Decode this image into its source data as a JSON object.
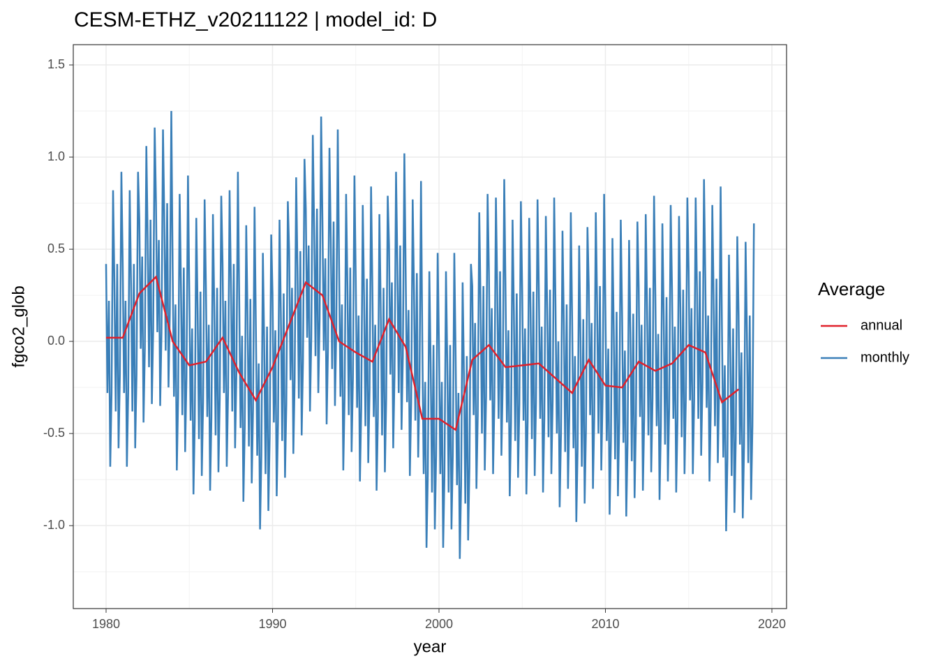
{
  "chart_data": {
    "type": "line",
    "title": "CESM-ETHZ_v20211122 | model_id: D",
    "xlabel": "year",
    "ylabel": "fgco2_glob",
    "legend_title": "Average",
    "legend": "right",
    "grid": true,
    "xlim": [
      1978.03,
      2020.88
    ],
    "xticks": [
      1980,
      1990,
      2000,
      2010,
      2020
    ],
    "ylim": [
      -1.45,
      1.61
    ],
    "yticks": [
      {
        "value": -1.0,
        "label": "-1.0"
      },
      {
        "value": -0.5,
        "label": "-0.5"
      },
      {
        "value": 0.0,
        "label": "0.0"
      },
      {
        "value": 0.5,
        "label": "0.5"
      },
      {
        "value": 1.0,
        "label": "1.0"
      },
      {
        "value": 1.5,
        "label": "1.5"
      }
    ],
    "series": [
      {
        "name": "annual",
        "color": "#e0202a",
        "x": [
          1980,
          1981,
          1982,
          1983,
          1984,
          1985,
          1986,
          1987,
          1988,
          1989,
          1990,
          1991,
          1992,
          1993,
          1994,
          1995,
          1996,
          1997,
          1998,
          1999,
          2000,
          2001,
          2002,
          2003,
          2004,
          2005,
          2006,
          2007,
          2008,
          2009,
          2010,
          2011,
          2012,
          2013,
          2014,
          2015,
          2016,
          2017,
          2018
        ],
        "values": [
          0.02,
          0.02,
          0.26,
          0.35,
          0.0,
          -0.13,
          -0.11,
          0.02,
          -0.17,
          -0.32,
          -0.14,
          0.09,
          0.32,
          0.25,
          0.0,
          -0.06,
          -0.11,
          0.12,
          -0.03,
          -0.42,
          -0.42,
          -0.48,
          -0.1,
          -0.02,
          -0.14,
          -0.13,
          -0.12,
          -0.2,
          -0.28,
          -0.1,
          -0.24,
          -0.25,
          -0.11,
          -0.16,
          -0.12,
          -0.02,
          -0.06,
          -0.33,
          -0.26
        ]
      },
      {
        "name": "monthly",
        "color": "#3a7fb8",
        "x": [
          1980.0,
          1980.08,
          1980.17,
          1980.25,
          1980.33,
          1980.42,
          1980.5,
          1980.58,
          1980.67,
          1980.75,
          1980.83,
          1980.92,
          1981.0,
          1981.08,
          1981.17,
          1981.25,
          1981.33,
          1981.42,
          1981.5,
          1981.58,
          1981.67,
          1981.75,
          1981.83,
          1981.92,
          1982.0,
          1982.08,
          1982.17,
          1982.25,
          1982.33,
          1982.42,
          1982.5,
          1982.58,
          1982.67,
          1982.75,
          1982.83,
          1982.92,
          1983.0,
          1983.08,
          1983.17,
          1983.25,
          1983.33,
          1983.42,
          1983.5,
          1983.58,
          1983.67,
          1983.75,
          1983.83,
          1983.92,
          1984.0,
          1984.08,
          1984.17,
          1984.25,
          1984.33,
          1984.42,
          1984.5,
          1984.58,
          1984.67,
          1984.75,
          1984.83,
          1984.92,
          1985.0,
          1985.08,
          1985.17,
          1985.25,
          1985.33,
          1985.42,
          1985.5,
          1985.58,
          1985.67,
          1985.75,
          1985.83,
          1985.92,
          1986.0,
          1986.08,
          1986.17,
          1986.25,
          1986.33,
          1986.42,
          1986.5,
          1986.58,
          1986.67,
          1986.75,
          1986.83,
          1986.92,
          1987.0,
          1987.08,
          1987.17,
          1987.25,
          1987.33,
          1987.42,
          1987.5,
          1987.58,
          1987.67,
          1987.75,
          1987.83,
          1987.92,
          1988.0,
          1988.08,
          1988.17,
          1988.25,
          1988.33,
          1988.42,
          1988.5,
          1988.58,
          1988.67,
          1988.75,
          1988.83,
          1988.92,
          1989.0,
          1989.08,
          1989.17,
          1989.25,
          1989.33,
          1989.42,
          1989.5,
          1989.58,
          1989.67,
          1989.75,
          1989.83,
          1989.92,
          1990.0,
          1990.08,
          1990.17,
          1990.25,
          1990.33,
          1990.42,
          1990.5,
          1990.58,
          1990.67,
          1990.75,
          1990.83,
          1990.92,
          1991.0,
          1991.08,
          1991.17,
          1991.25,
          1991.33,
          1991.42,
          1991.5,
          1991.58,
          1991.67,
          1991.75,
          1991.83,
          1991.92,
          1992.0,
          1992.08,
          1992.17,
          1992.25,
          1992.33,
          1992.42,
          1992.5,
          1992.58,
          1992.67,
          1992.75,
          1992.83,
          1992.92,
          1993.0,
          1993.08,
          1993.17,
          1993.25,
          1993.33,
          1993.42,
          1993.5,
          1993.58,
          1993.67,
          1993.75,
          1993.83,
          1993.92,
          1994.0,
          1994.08,
          1994.17,
          1994.25,
          1994.33,
          1994.42,
          1994.5,
          1994.58,
          1994.67,
          1994.75,
          1994.83,
          1994.92,
          1995.0,
          1995.08,
          1995.17,
          1995.25,
          1995.33,
          1995.42,
          1995.5,
          1995.58,
          1995.67,
          1995.75,
          1995.83,
          1995.92,
          1996.0,
          1996.08,
          1996.17,
          1996.25,
          1996.33,
          1996.42,
          1996.5,
          1996.58,
          1996.67,
          1996.75,
          1996.83,
          1996.92,
          1997.0,
          1997.08,
          1997.17,
          1997.25,
          1997.33,
          1997.42,
          1997.5,
          1997.58,
          1997.67,
          1997.75,
          1997.83,
          1997.92,
          1998.0,
          1998.08,
          1998.17,
          1998.25,
          1998.33,
          1998.42,
          1998.5,
          1998.58,
          1998.67,
          1998.75,
          1998.83,
          1998.92,
          1999.0,
          1999.08,
          1999.17,
          1999.25,
          1999.33,
          1999.42,
          1999.5,
          1999.58,
          1999.67,
          1999.75,
          1999.83,
          1999.92,
          2000.0,
          2000.08,
          2000.17,
          2000.25,
          2000.33,
          2000.42,
          2000.5,
          2000.58,
          2000.67,
          2000.75,
          2000.83,
          2000.92,
          2001.0,
          2001.08,
          2001.17,
          2001.25,
          2001.33,
          2001.42,
          2001.5,
          2001.58,
          2001.67,
          2001.75,
          2001.83,
          2001.92,
          2002.0,
          2002.08,
          2002.17,
          2002.25,
          2002.33,
          2002.42,
          2002.5,
          2002.58,
          2002.67,
          2002.75,
          2002.83,
          2002.92,
          2003.0,
          2003.08,
          2003.17,
          2003.25,
          2003.33,
          2003.42,
          2003.5,
          2003.58,
          2003.67,
          2003.75,
          2003.83,
          2003.92,
          2004.0,
          2004.08,
          2004.17,
          2004.25,
          2004.33,
          2004.42,
          2004.5,
          2004.58,
          2004.67,
          2004.75,
          2004.83,
          2004.92,
          2005.0,
          2005.08,
          2005.17,
          2005.25,
          2005.33,
          2005.42,
          2005.5,
          2005.58,
          2005.67,
          2005.75,
          2005.83,
          2005.92,
          2006.0,
          2006.08,
          2006.17,
          2006.25,
          2006.33,
          2006.42,
          2006.5,
          2006.58,
          2006.67,
          2006.75,
          2006.83,
          2006.92,
          2007.0,
          2007.08,
          2007.17,
          2007.25,
          2007.33,
          2007.42,
          2007.5,
          2007.58,
          2007.67,
          2007.75,
          2007.83,
          2007.92,
          2008.0,
          2008.08,
          2008.17,
          2008.25,
          2008.33,
          2008.42,
          2008.5,
          2008.58,
          2008.67,
          2008.75,
          2008.83,
          2008.92,
          2009.0,
          2009.08,
          2009.17,
          2009.25,
          2009.33,
          2009.42,
          2009.5,
          2009.58,
          2009.67,
          2009.75,
          2009.83,
          2009.92,
          2010.0,
          2010.08,
          2010.17,
          2010.25,
          2010.33,
          2010.42,
          2010.5,
          2010.58,
          2010.67,
          2010.75,
          2010.83,
          2010.92,
          2011.0,
          2011.08,
          2011.17,
          2011.25,
          2011.33,
          2011.42,
          2011.5,
          2011.58,
          2011.67,
          2011.75,
          2011.83,
          2011.92,
          2012.0,
          2012.08,
          2012.17,
          2012.25,
          2012.33,
          2012.42,
          2012.5,
          2012.58,
          2012.67,
          2012.75,
          2012.83,
          2012.92,
          2013.0,
          2013.08,
          2013.17,
          2013.25,
          2013.33,
          2013.42,
          2013.5,
          2013.58,
          2013.67,
          2013.75,
          2013.83,
          2013.92,
          2014.0,
          2014.08,
          2014.17,
          2014.25,
          2014.33,
          2014.42,
          2014.5,
          2014.58,
          2014.67,
          2014.75,
          2014.83,
          2014.92,
          2015.0,
          2015.08,
          2015.17,
          2015.25,
          2015.33,
          2015.42,
          2015.5,
          2015.58,
          2015.67,
          2015.75,
          2015.83,
          2015.92,
          2016.0,
          2016.08,
          2016.17,
          2016.25,
          2016.33,
          2016.42,
          2016.5,
          2016.58,
          2016.67,
          2016.75,
          2016.83,
          2016.92,
          2017.0,
          2017.08,
          2017.17,
          2017.25,
          2017.33,
          2017.42,
          2017.5,
          2017.58,
          2017.67,
          2017.75,
          2017.83,
          2017.92,
          2018.0,
          2018.08,
          2018.17,
          2018.25,
          2018.33,
          2018.42,
          2018.5,
          2018.58,
          2018.67,
          2018.75,
          2018.83,
          2018.92
        ],
        "values": [
          0.42,
          -0.28,
          0.22,
          -0.68,
          -0.28,
          0.82,
          0.32,
          -0.38,
          0.42,
          -0.58,
          -0.18,
          0.92,
          0.42,
          -0.28,
          0.22,
          -0.68,
          -0.28,
          0.82,
          0.32,
          -0.38,
          0.42,
          -0.58,
          -0.18,
          0.92,
          0.66,
          -0.04,
          0.46,
          -0.44,
          -0.04,
          1.06,
          0.56,
          -0.14,
          0.66,
          -0.34,
          0.06,
          1.16,
          0.75,
          0.05,
          0.55,
          -0.35,
          0.05,
          1.15,
          0.65,
          -0.05,
          0.75,
          -0.25,
          0.15,
          1.25,
          0.4,
          -0.3,
          0.2,
          -0.7,
          -0.3,
          0.8,
          0.3,
          -0.4,
          0.4,
          -0.6,
          -0.2,
          0.9,
          0.27,
          -0.43,
          0.07,
          -0.83,
          -0.43,
          0.67,
          0.17,
          -0.53,
          0.27,
          -0.73,
          -0.33,
          0.77,
          0.29,
          -0.41,
          0.09,
          -0.81,
          -0.41,
          0.69,
          0.19,
          -0.51,
          0.29,
          -0.71,
          -0.31,
          0.79,
          0.42,
          -0.28,
          0.22,
          -0.68,
          -0.28,
          0.82,
          0.32,
          -0.38,
          0.42,
          -0.58,
          -0.18,
          0.92,
          0.23,
          -0.47,
          0.03,
          -0.87,
          -0.47,
          0.63,
          0.13,
          -0.57,
          0.23,
          -0.77,
          -0.37,
          0.73,
          0.08,
          -0.62,
          -0.12,
          -1.02,
          -0.62,
          0.48,
          -0.02,
          -0.72,
          0.08,
          -0.92,
          -0.52,
          0.58,
          0.26,
          -0.44,
          0.06,
          -0.84,
          -0.44,
          0.66,
          0.16,
          -0.54,
          0.26,
          -0.74,
          -0.34,
          0.76,
          0.49,
          -0.21,
          0.29,
          -0.61,
          -0.21,
          0.89,
          0.39,
          -0.31,
          0.49,
          -0.51,
          -0.11,
          0.99,
          0.72,
          0.02,
          0.52,
          -0.38,
          0.02,
          1.12,
          0.62,
          -0.08,
          0.72,
          -0.28,
          0.12,
          1.22,
          0.65,
          -0.05,
          0.45,
          -0.45,
          -0.05,
          1.05,
          0.55,
          -0.15,
          0.65,
          -0.35,
          0.05,
          1.15,
          0.4,
          -0.3,
          0.2,
          -0.7,
          -0.3,
          0.8,
          0.3,
          -0.4,
          0.4,
          -0.6,
          -0.2,
          0.9,
          0.34,
          -0.36,
          0.14,
          -0.76,
          -0.36,
          0.74,
          0.24,
          -0.46,
          0.34,
          -0.66,
          -0.26,
          0.84,
          0.29,
          -0.41,
          0.09,
          -0.81,
          -0.41,
          0.69,
          0.19,
          -0.51,
          0.29,
          -0.71,
          -0.31,
          0.79,
          0.52,
          -0.18,
          0.32,
          -0.58,
          -0.18,
          0.92,
          0.42,
          -0.28,
          0.52,
          -0.48,
          -0.08,
          1.02,
          0.37,
          -0.33,
          0.17,
          -0.73,
          -0.33,
          0.77,
          0.27,
          -0.43,
          0.37,
          -0.63,
          -0.23,
          0.87,
          -0.02,
          -0.72,
          -0.22,
          -1.12,
          -0.72,
          0.38,
          -0.12,
          -0.82,
          -0.02,
          -1.02,
          -0.62,
          0.48,
          -0.02,
          -0.72,
          -0.22,
          -1.12,
          -0.72,
          0.38,
          -0.12,
          -0.82,
          -0.02,
          -1.02,
          -0.62,
          0.48,
          -0.08,
          -0.78,
          -0.28,
          -1.18,
          -0.78,
          0.32,
          -0.18,
          -0.88,
          -0.08,
          -1.08,
          -0.68,
          0.42,
          0.3,
          -0.4,
          0.1,
          -0.8,
          -0.4,
          0.7,
          0.2,
          -0.5,
          0.3,
          -0.7,
          -0.3,
          0.8,
          0.38,
          -0.32,
          0.18,
          -0.72,
          -0.32,
          0.78,
          0.28,
          -0.42,
          0.38,
          -0.62,
          -0.22,
          0.88,
          0.26,
          -0.44,
          0.06,
          -0.84,
          -0.44,
          0.66,
          0.16,
          -0.54,
          0.26,
          -0.74,
          -0.34,
          0.76,
          0.27,
          -0.43,
          0.07,
          -0.83,
          -0.43,
          0.67,
          0.17,
          -0.53,
          0.27,
          -0.73,
          -0.33,
          0.77,
          0.28,
          -0.42,
          0.08,
          -0.82,
          -0.42,
          0.68,
          0.18,
          -0.52,
          0.28,
          -0.72,
          -0.32,
          0.78,
          0.2,
          -0.5,
          0,
          -0.9,
          -0.5,
          0.6,
          0.1,
          -0.6,
          0.2,
          -0.8,
          -0.4,
          0.7,
          0.12,
          -0.58,
          -0.08,
          -0.98,
          -0.58,
          0.52,
          0.02,
          -0.68,
          0.12,
          -0.88,
          -0.48,
          0.62,
          0.3,
          -0.4,
          0.1,
          -0.8,
          -0.4,
          0.7,
          0.2,
          -0.5,
          0.3,
          -0.7,
          -0.3,
          0.8,
          0.16,
          -0.54,
          -0.04,
          -0.94,
          -0.54,
          0.56,
          0.06,
          -0.64,
          0.16,
          -0.84,
          -0.44,
          0.66,
          0.15,
          -0.55,
          -0.05,
          -0.95,
          -0.55,
          0.55,
          0.05,
          -0.65,
          0.15,
          -0.85,
          -0.45,
          0.65,
          0.29,
          -0.41,
          0.09,
          -0.81,
          -0.41,
          0.69,
          0.19,
          -0.51,
          0.29,
          -0.71,
          -0.31,
          0.79,
          0.24,
          -0.46,
          0.04,
          -0.86,
          -0.46,
          0.64,
          0.14,
          -0.56,
          0.24,
          -0.76,
          -0.36,
          0.74,
          0.28,
          -0.42,
          0.08,
          -0.82,
          -0.42,
          0.68,
          0.18,
          -0.52,
          0.28,
          -0.72,
          -0.32,
          0.78,
          0.38,
          -0.32,
          0.18,
          -0.72,
          -0.32,
          0.78,
          0.28,
          -0.42,
          0.38,
          -0.62,
          -0.22,
          0.88,
          0.34,
          -0.36,
          0.14,
          -0.76,
          -0.36,
          0.74,
          0.24,
          -0.46,
          0.34,
          -0.66,
          -0.26,
          0.84,
          0.07,
          -0.63,
          -0.13,
          -1.03,
          -0.63,
          0.47,
          -0.03,
          -0.73,
          0.07,
          -0.93,
          -0.53,
          0.57,
          0.14,
          -0.56,
          -0.06,
          -0.96,
          -0.56,
          0.54,
          0.04,
          -0.66,
          0.14,
          -0.86,
          -0.46,
          0.64
        ]
      }
    ]
  }
}
